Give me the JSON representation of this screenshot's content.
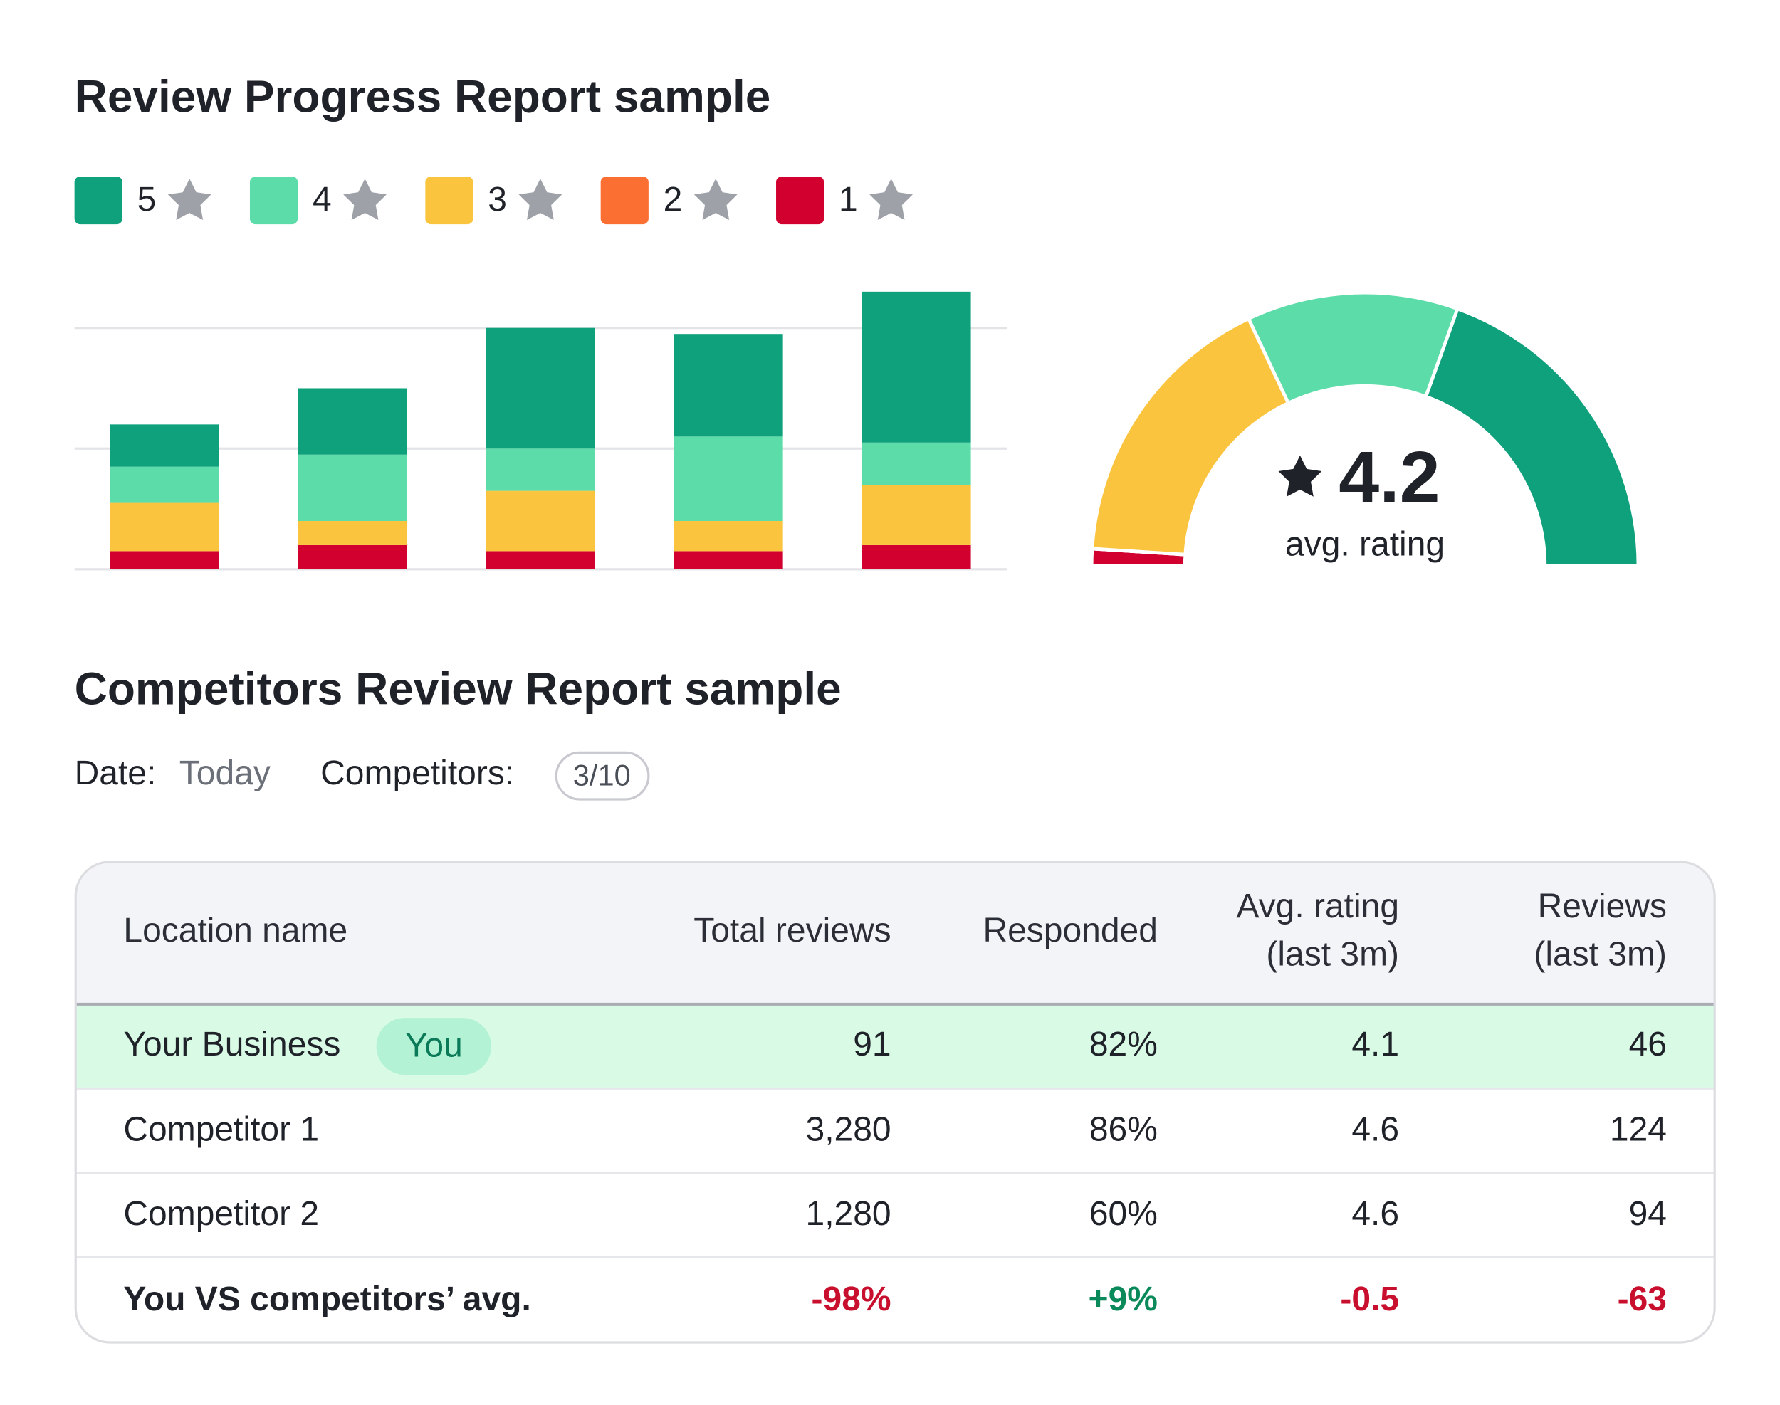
{
  "chart_data": [
    {
      "type": "bar",
      "stacked": true,
      "title": "Review Progress Report sample",
      "categories": [
        null,
        null,
        null,
        null,
        null
      ],
      "series": [
        {
          "name": "5",
          "color": "#0fa07c",
          "values": [
            3.5,
            5.5,
            10,
            8.5,
            12.5
          ]
        },
        {
          "name": "4",
          "color": "#5cdca8",
          "values": [
            3,
            5.5,
            3.5,
            7,
            3.5
          ]
        },
        {
          "name": "3",
          "color": "#fbc43f",
          "values": [
            4,
            2,
            5,
            2.5,
            5
          ]
        },
        {
          "name": "2",
          "color": "#fc6f32",
          "values": [
            0,
            0,
            0,
            0,
            0
          ]
        },
        {
          "name": "1",
          "color": "#d1002f",
          "values": [
            1.5,
            2,
            1.5,
            1.5,
            2
          ]
        }
      ],
      "ylim": [
        0,
        25
      ],
      "yticks": [
        0,
        10,
        20
      ],
      "grid": true
    },
    {
      "type": "gauge",
      "values": [
        39,
        25,
        34,
        0,
        2
      ],
      "colors": [
        "#0fa07c",
        "#5cdca8",
        "#fbc43f",
        "#fc6f32",
        "#d1002f"
      ],
      "value": 4.2,
      "label": "avg. rating"
    }
  ],
  "competitors_report": {
    "title": "Competitors Review Report sample",
    "date_label": "Date:",
    "date_value": "Today",
    "competitors_label": "Competitors:",
    "competitors_value": "3/10",
    "table": {
      "headers": [
        [
          "Location name"
        ],
        [
          "Total reviews"
        ],
        [
          "Responded"
        ],
        [
          "Avg. rating",
          "(last 3m)"
        ],
        [
          "Reviews",
          "(last 3m)"
        ]
      ],
      "rows": [
        {
          "cells": [
            "Your Business",
            "91",
            "82%",
            "4.1",
            "46"
          ],
          "badge": "You"
        },
        {
          "cells": [
            "Competitor 1",
            "3,280",
            "86%",
            "4.6",
            "124"
          ]
        },
        {
          "cells": [
            "Competitor 2",
            "1,280",
            "60%",
            "4.6",
            "94"
          ]
        },
        {
          "cells": [
            "You VS competitors’ avg.",
            "-98%",
            "+9%",
            "-0.5",
            "-63"
          ],
          "colors": [
            "#1f2229",
            "#c8102e",
            "#0a8a5a",
            "#c8102e",
            "#c8102e"
          ]
        }
      ]
    }
  }
}
